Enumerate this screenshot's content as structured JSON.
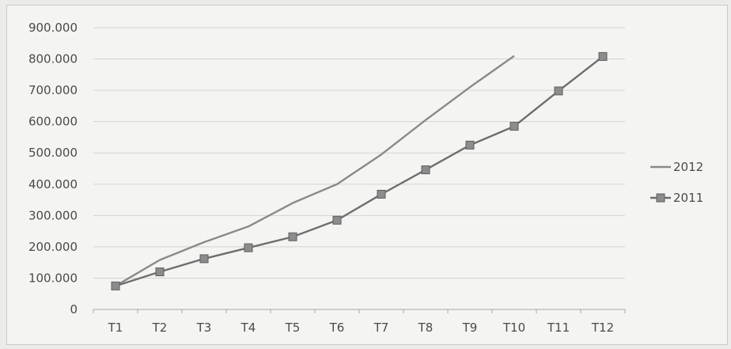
{
  "chart_data": {
    "type": "line",
    "title": "",
    "xlabel": "",
    "ylabel": "",
    "categories": [
      "T1",
      "T2",
      "T3",
      "T4",
      "T5",
      "T6",
      "T7",
      "T8",
      "T9",
      "T10",
      "T11",
      "T12"
    ],
    "y_ticks": [
      "0",
      "100.000",
      "200.000",
      "300.000",
      "400.000",
      "500.000",
      "600.000",
      "700.000",
      "800.000",
      "900.000"
    ],
    "ylim": [
      0,
      900000
    ],
    "grid": true,
    "legend_position": "right",
    "series": [
      {
        "name": "2012",
        "color": "#8a8a8a",
        "marker": "none",
        "values": [
          75000,
          158000,
          215000,
          265000,
          340000,
          400000,
          495000,
          605000,
          710000,
          810000,
          null,
          null
        ]
      },
      {
        "name": "2011",
        "color": "#6e6e6e",
        "marker": "square",
        "values": [
          75000,
          120000,
          162000,
          197000,
          232000,
          285000,
          368000,
          446000,
          525000,
          585000,
          698000,
          808000
        ]
      }
    ]
  }
}
